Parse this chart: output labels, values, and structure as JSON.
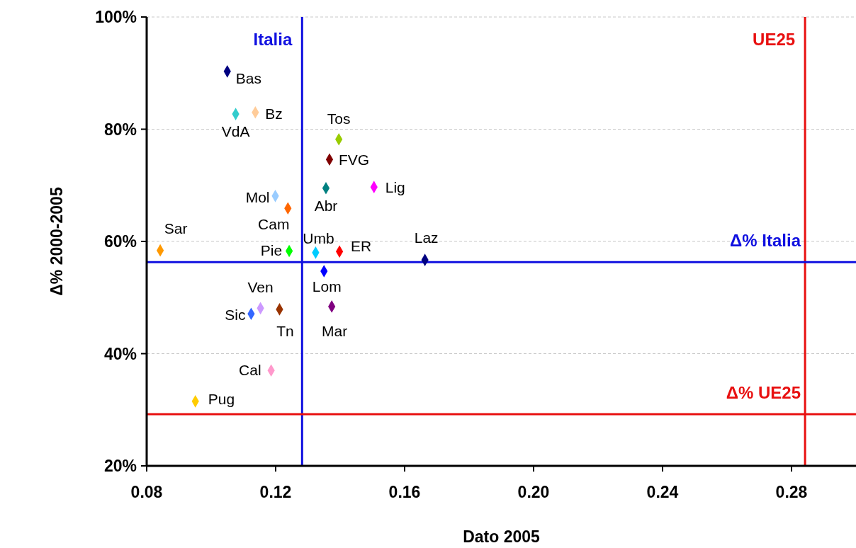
{
  "chart_data": {
    "type": "scatter",
    "xlabel": "Dato 2005",
    "ylabel": "Δ% 2000-2005",
    "xlim": [
      0.08,
      0.3
    ],
    "ylim": [
      20,
      100
    ],
    "xticks": [
      {
        "value": 0.08,
        "label": "0.08"
      },
      {
        "value": 0.12,
        "label": "0.12"
      },
      {
        "value": 0.16,
        "label": "0.16"
      },
      {
        "value": 0.2,
        "label": "0.20"
      },
      {
        "value": 0.24,
        "label": "0.24"
      },
      {
        "value": 0.28,
        "label": "0.28"
      }
    ],
    "yticks": [
      {
        "value": 20,
        "label": "20%"
      },
      {
        "value": 40,
        "label": "40%"
      },
      {
        "value": 60,
        "label": "60%"
      },
      {
        "value": 80,
        "label": "80%"
      },
      {
        "value": 100,
        "label": "100%"
      }
    ],
    "grid": "y",
    "marker": "diamond",
    "series": [
      {
        "name": "Bas",
        "color": "#000080",
        "x": [
          0.105
        ],
        "values": [
          90.3
        ]
      },
      {
        "name": "VdA",
        "color": "#33cccc",
        "x": [
          0.1076
        ],
        "values": [
          82.7
        ]
      },
      {
        "name": "Bz",
        "color": "#ffcc99",
        "x": [
          0.1137
        ],
        "values": [
          83.0
        ]
      },
      {
        "name": "Tos",
        "color": "#99cc00",
        "x": [
          0.1396
        ],
        "values": [
          78.2
        ]
      },
      {
        "name": "FVG",
        "color": "#800000",
        "x": [
          0.1367
        ],
        "values": [
          74.6
        ]
      },
      {
        "name": "Abr",
        "color": "#008080",
        "x": [
          0.1356
        ],
        "values": [
          69.5
        ]
      },
      {
        "name": "Lig",
        "color": "#ff00ff",
        "x": [
          0.1505
        ],
        "values": [
          69.7
        ]
      },
      {
        "name": "Mol",
        "color": "#99ccff",
        "x": [
          0.1199
        ],
        "values": [
          68.1
        ]
      },
      {
        "name": "Cam",
        "color": "#ff6600",
        "x": [
          0.1238
        ],
        "values": [
          65.9
        ]
      },
      {
        "name": "Sar",
        "color": "#ff9900",
        "x": [
          0.0842
        ],
        "values": [
          58.4
        ]
      },
      {
        "name": "Pie",
        "color": "#00ff00",
        "x": [
          0.1242
        ],
        "values": [
          58.3
        ]
      },
      {
        "name": "Umb",
        "color": "#00ccff",
        "x": [
          0.1324
        ],
        "values": [
          58.0
        ]
      },
      {
        "name": "ER",
        "color": "#ff0000",
        "x": [
          0.1398
        ],
        "values": [
          58.2
        ]
      },
      {
        "name": "Laz",
        "color": "#000080",
        "x": [
          0.1663
        ],
        "values": [
          56.7
        ]
      },
      {
        "name": "Lom",
        "color": "#0000ff",
        "x": [
          0.135
        ],
        "values": [
          54.7
        ]
      },
      {
        "name": "Ven",
        "color": "#cc99ff",
        "x": [
          0.1153
        ],
        "values": [
          48.1
        ]
      },
      {
        "name": "Tn",
        "color": "#993300",
        "x": [
          0.1212
        ],
        "values": [
          47.9
        ]
      },
      {
        "name": "Mar",
        "color": "#800080",
        "x": [
          0.1374
        ],
        "values": [
          48.4
        ]
      },
      {
        "name": "Sic",
        "color": "#3366ff",
        "x": [
          0.1124
        ],
        "values": [
          47.1
        ]
      },
      {
        "name": "Cal",
        "color": "#ff99cc",
        "x": [
          0.1186
        ],
        "values": [
          37.0
        ]
      },
      {
        "name": "Pug",
        "color": "#ffcc00",
        "x": [
          0.0951
        ],
        "values": [
          31.5
        ]
      }
    ],
    "ref_lines": [
      {
        "axis": "x",
        "value": 0.1282,
        "label": "Italia",
        "color": "#1010e0"
      },
      {
        "axis": "x",
        "value": 0.2842,
        "label": "UE25",
        "color": "#e81010"
      },
      {
        "axis": "y",
        "value": 56.3,
        "label": "Δ% Italia",
        "color": "#1010e0"
      },
      {
        "axis": "y",
        "value": 29.2,
        "label": "Δ% UE25",
        "color": "#e81010"
      }
    ]
  }
}
